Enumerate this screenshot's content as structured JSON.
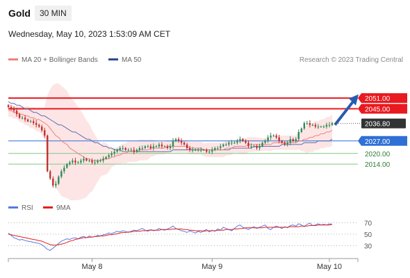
{
  "header": {
    "symbol": "Gold",
    "timeframe": "30 MIN",
    "datetime": "Wednesday, May 10, 2023 1:53:09 AM CET"
  },
  "legend": {
    "ma20_label": "MA 20 + Bollinger Bands",
    "ma50_label": "MA 50",
    "rsi_label": "RSI",
    "rsi_ma_label": "9MA"
  },
  "research_text": "Research © 2023 Trading Central",
  "colors": {
    "resistance": "#e8191f",
    "support": "#2f6fd6",
    "support_minor": "#7fc97f",
    "candle_up": "#2e8b57",
    "candle_down": "#c0302b",
    "ma20": "#f08080",
    "ma50": "#5a6fb0",
    "band_fill": "#fde0e0",
    "rsi": "#5a78e0",
    "rsi_ma": "#e02020",
    "current_price_bg": "#333333",
    "arrow": "#2a5ab0"
  },
  "chart_data": [
    {
      "type": "candlestick",
      "x_ticks": [
        "May 8",
        "May 9",
        "May 10"
      ],
      "ylim": [
        1995,
        2060
      ],
      "current_price": "2036.80",
      "levels": [
        {
          "value": 2051.0,
          "label": "2051.00",
          "kind": "resistance"
        },
        {
          "value": 2045.0,
          "label": "2045.00",
          "kind": "resistance"
        },
        {
          "value": 2027.0,
          "label": "2027.00",
          "kind": "pivot"
        },
        {
          "value": 2020.0,
          "label": "2020.00",
          "kind": "support"
        },
        {
          "value": 2014.0,
          "label": "2014.00",
          "kind": "support"
        }
      ],
      "close": [
        2046,
        2045,
        2044,
        2042,
        2040,
        2040,
        2039,
        2038,
        2038,
        2037,
        2036,
        2035,
        2033,
        2030,
        2010,
        2006,
        2002,
        2003,
        2007,
        2010,
        2012,
        2014,
        2015,
        2016,
        2015,
        2015,
        2016,
        2017,
        2016,
        2016,
        2015,
        2015,
        2016,
        2016,
        2017,
        2018,
        2019,
        2020,
        2021,
        2022,
        2023,
        2023,
        2022,
        2022,
        2022,
        2021,
        2022,
        2023,
        2023,
        2024,
        2024,
        2023,
        2024,
        2024,
        2025,
        2024,
        2024,
        2023,
        2024,
        2027,
        2028,
        2027,
        2026,
        2025,
        2023,
        2022,
        2022,
        2022,
        2022,
        2022,
        2022,
        2021,
        2021,
        2022,
        2023,
        2023,
        2024,
        2025,
        2025,
        2026,
        2026,
        2026,
        2027,
        2028,
        2027,
        2026,
        2024,
        2024,
        2024,
        2023,
        2024,
        2026,
        2027,
        2029,
        2030,
        2030,
        2029,
        2027,
        2026,
        2025,
        2026,
        2028,
        2027,
        2028,
        2032,
        2034,
        2037,
        2037,
        2036,
        2036,
        2035,
        2035,
        2035,
        2035,
        2036,
        2036,
        2037
      ],
      "ma20": [
        2044,
        2044,
        2043,
        2043,
        2042,
        2042,
        2041,
        2041,
        2040,
        2040,
        2039,
        2039,
        2038,
        2037,
        2036,
        2034,
        2032,
        2030,
        2029,
        2027,
        2026,
        2025,
        2023,
        2022,
        2021,
        2020,
        2019,
        2018,
        2017,
        2017,
        2016,
        2016,
        2016,
        2016,
        2017,
        2017,
        2017,
        2018,
        2018,
        2019,
        2019,
        2020,
        2020,
        2021,
        2021,
        2021,
        2021,
        2022,
        2022,
        2022,
        2022,
        2023,
        2023,
        2023,
        2023,
        2023,
        2023,
        2024,
        2024,
        2024,
        2024,
        2024,
        2024,
        2024,
        2024,
        2023,
        2023,
        2023,
        2023,
        2023,
        2022,
        2022,
        2022,
        2022,
        2022,
        2022,
        2022,
        2022,
        2023,
        2023,
        2023,
        2024,
        2024,
        2024,
        2024,
        2024,
        2025,
        2025,
        2025,
        2025,
        2025,
        2025,
        2025,
        2025,
        2025,
        2026,
        2026,
        2026,
        2026,
        2026,
        2026,
        2026,
        2026,
        2026,
        2027,
        2027,
        2028,
        2028,
        2029,
        2029,
        2030,
        2030,
        2031,
        2031,
        2032,
        2032,
        2033
      ],
      "ma50": [
        2049,
        2048,
        2048,
        2047,
        2047,
        2046,
        2045,
        2045,
        2044,
        2043,
        2043,
        2042,
        2041,
        2041,
        2040,
        2039,
        2038,
        2037,
        2036,
        2036,
        2035,
        2034,
        2033,
        2032,
        2032,
        2031,
        2030,
        2029,
        2028,
        2028,
        2027,
        2026,
        2026,
        2025,
        2024,
        2024,
        2023,
        2023,
        2022,
        2022,
        2022,
        2021,
        2021,
        2021,
        2021,
        2021,
        2021,
        2021,
        2021,
        2021,
        2021,
        2021,
        2021,
        2021,
        2021,
        2021,
        2021,
        2021,
        2021,
        2022,
        2022,
        2022,
        2022,
        2022,
        2022,
        2022,
        2022,
        2022,
        2022,
        2022,
        2022,
        2022,
        2022,
        2022,
        2022,
        2022,
        2022,
        2022,
        2022,
        2022,
        2023,
        2023,
        2023,
        2023,
        2023,
        2023,
        2023,
        2023,
        2024,
        2024,
        2024,
        2024,
        2024,
        2024,
        2024,
        2024,
        2024,
        2024,
        2025,
        2025,
        2025,
        2025,
        2025,
        2025,
        2025,
        2025,
        2026,
        2026,
        2026,
        2026,
        2026,
        2027,
        2027,
        2027,
        2027,
        2027,
        2028
      ]
    },
    {
      "type": "line",
      "name": "RSI",
      "yticks": [
        70,
        50,
        30
      ],
      "ylim": [
        20,
        80
      ],
      "rsi": [
        52,
        48,
        44,
        42,
        40,
        41,
        39,
        38,
        37,
        36,
        35,
        34,
        32,
        28,
        24,
        22,
        26,
        30,
        34,
        38,
        40,
        42,
        41,
        43,
        44,
        42,
        45,
        46,
        44,
        47,
        45,
        46,
        48,
        47,
        49,
        50,
        52,
        51,
        53,
        55,
        54,
        56,
        55,
        53,
        55,
        57,
        56,
        58,
        60,
        57,
        55,
        58,
        56,
        57,
        60,
        58,
        57,
        59,
        61,
        64,
        60,
        58,
        56,
        55,
        53,
        56,
        54,
        52,
        55,
        53,
        56,
        58,
        54,
        57,
        55,
        59,
        57,
        62,
        60,
        58,
        56,
        60,
        64,
        66,
        62,
        60,
        58,
        61,
        63,
        60,
        62,
        64,
        66,
        60,
        58,
        62,
        64,
        62,
        60,
        63,
        61,
        65,
        66,
        64,
        68,
        66,
        63,
        67,
        69,
        65,
        66,
        68,
        66,
        67,
        66,
        68,
        67
      ],
      "rsi_ma": [
        50,
        49,
        48,
        47,
        46,
        45,
        44,
        43,
        42,
        41,
        40,
        39,
        38,
        36,
        34,
        32,
        31,
        31,
        32,
        33,
        34,
        36,
        38,
        39,
        41,
        42,
        43,
        44,
        44,
        45,
        45,
        46,
        46,
        47,
        47,
        48,
        49,
        49,
        50,
        51,
        52,
        53,
        53,
        54,
        54,
        55,
        55,
        55,
        56,
        56,
        57,
        57,
        57,
        57,
        57,
        58,
        58,
        58,
        58,
        59,
        59,
        59,
        59,
        58,
        58,
        57,
        57,
        56,
        56,
        56,
        55,
        56,
        56,
        56,
        56,
        57,
        57,
        57,
        58,
        58,
        58,
        59,
        59,
        60,
        60,
        61,
        61,
        61,
        61,
        61,
        61,
        61,
        62,
        62,
        62,
        62,
        62,
        62,
        62,
        62,
        62,
        63,
        63,
        63,
        63,
        64,
        64,
        64,
        65,
        65,
        65,
        66,
        66,
        66,
        66,
        66,
        67
      ]
    }
  ]
}
